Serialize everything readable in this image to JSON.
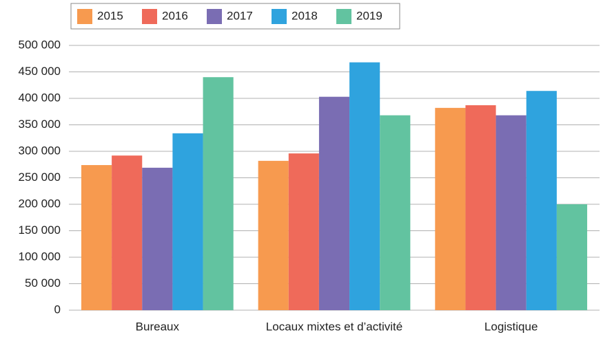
{
  "chart_data": {
    "type": "bar",
    "categories": [
      "Bureaux",
      "Locaux mixtes et d’activité",
      "Logistique"
    ],
    "series": [
      {
        "name": "2015",
        "color": "#f79a4f",
        "values": [
          274000,
          282000,
          382000
        ]
      },
      {
        "name": "2016",
        "color": "#ef6a5a",
        "values": [
          292000,
          296000,
          387000
        ]
      },
      {
        "name": "2017",
        "color": "#7a6db3",
        "values": [
          269000,
          403000,
          368000
        ]
      },
      {
        "name": "2018",
        "color": "#2fa3de",
        "values": [
          334000,
          468000,
          414000
        ]
      },
      {
        "name": "2019",
        "color": "#62c3a0",
        "values": [
          440000,
          368000,
          200000
        ]
      }
    ],
    "ylim": [
      0,
      500000
    ],
    "yticks": [
      0,
      {
        "value": 50000,
        "label": "50 000"
      },
      {
        "value": 100000,
        "label": "100 000"
      },
      {
        "value": 150000,
        "label": "150 000"
      },
      {
        "value": 200000,
        "label": "200 000"
      },
      {
        "value": 250000,
        "label": "250 000"
      },
      {
        "value": 300000,
        "label": "300 000"
      },
      {
        "value": 350000,
        "label": "350 000"
      },
      {
        "value": 400000,
        "label": "400 000"
      },
      {
        "value": 450000,
        "label": "450 000"
      },
      {
        "value": 500000,
        "label": "500 000"
      }
    ],
    "grid": true,
    "legend": "top-left"
  }
}
